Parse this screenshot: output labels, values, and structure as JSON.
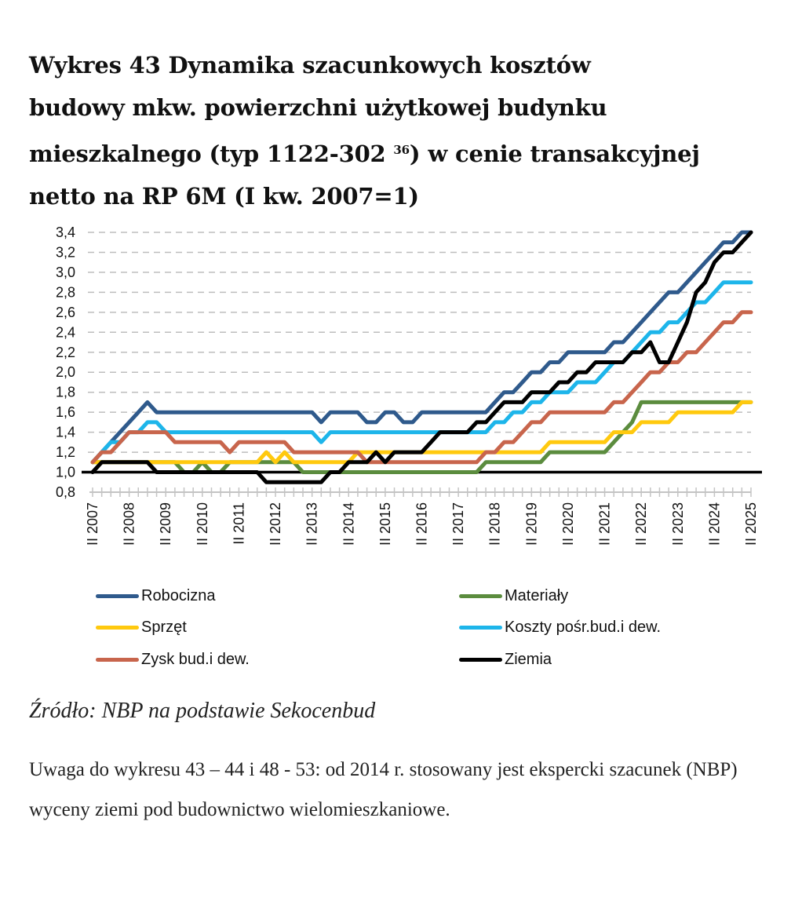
{
  "title": {
    "line1": "Wykres 43 Dynamika szacunkowych kosztów",
    "line2": "budowy mkw. powierzchni użytkowej budynku",
    "line3a": "mieszkalnego (typ 1122-302 ",
    "footnote": "36",
    "line3b": ") w cenie transakcyjnej",
    "line4": "netto na RP 6M (I kw. 2007=1)"
  },
  "chart_data": {
    "type": "line",
    "title": "Wykres 43 Dynamika szacunkowych kosztów budowy mkw. powierzchni użytkowej budynku mieszkalnego (typ 1122-302) w cenie transakcyjnej netto na RP 6M (I kw. 2007=1)",
    "xlabel": "",
    "ylabel": "",
    "x_start": "II 2007",
    "x_end": "II 2025",
    "frequency": "quarterly",
    "ylim": [
      0.8,
      3.4
    ],
    "yticks": [
      "0,8",
      "1,0",
      "1,2",
      "1,4",
      "1,6",
      "1,8",
      "2,0",
      "2,2",
      "2,4",
      "2,6",
      "2,8",
      "3,0",
      "3,2",
      "3,4"
    ],
    "ytick_values": [
      0.8,
      1.0,
      1.2,
      1.4,
      1.6,
      1.8,
      2.0,
      2.2,
      2.4,
      2.6,
      2.8,
      3.0,
      3.2,
      3.4
    ],
    "xtick_labels": [
      "II 2007",
      "II 2008",
      "II 2009",
      "II 2010",
      "II 2011",
      "II 2012",
      "II 2013",
      "II 2014",
      "II 2015",
      "II 2016",
      "II 2017",
      "II 2018",
      "II 2019",
      "II 2020",
      "II 2021",
      "II 2022",
      "II 2023",
      "II 2024",
      "II 2025"
    ],
    "reference_line": 1.0,
    "grid": true,
    "legend_position": "bottom",
    "series": [
      {
        "name": "Robocizna",
        "color": "#2F5A8C",
        "values": [
          1.1,
          1.2,
          1.3,
          1.4,
          1.5,
          1.6,
          1.7,
          1.6,
          1.6,
          1.6,
          1.6,
          1.6,
          1.6,
          1.6,
          1.6,
          1.6,
          1.6,
          1.6,
          1.6,
          1.6,
          1.6,
          1.6,
          1.6,
          1.6,
          1.6,
          1.5,
          1.6,
          1.6,
          1.6,
          1.6,
          1.5,
          1.5,
          1.6,
          1.6,
          1.5,
          1.5,
          1.6,
          1.6,
          1.6,
          1.6,
          1.6,
          1.6,
          1.6,
          1.6,
          1.7,
          1.8,
          1.8,
          1.9,
          2.0,
          2.0,
          2.1,
          2.1,
          2.2,
          2.2,
          2.2,
          2.2,
          2.2,
          2.3,
          2.3,
          2.4,
          2.5,
          2.6,
          2.7,
          2.8,
          2.8,
          2.9,
          3.0,
          3.1,
          3.2,
          3.3,
          3.3,
          3.4,
          3.4
        ]
      },
      {
        "name": "Koszty pośr.bud.i dew.",
        "color": "#1DB5EA",
        "values": [
          1.1,
          1.2,
          1.3,
          1.3,
          1.4,
          1.4,
          1.5,
          1.5,
          1.4,
          1.4,
          1.4,
          1.4,
          1.4,
          1.4,
          1.4,
          1.4,
          1.4,
          1.4,
          1.4,
          1.4,
          1.4,
          1.4,
          1.4,
          1.4,
          1.4,
          1.3,
          1.4,
          1.4,
          1.4,
          1.4,
          1.4,
          1.4,
          1.4,
          1.4,
          1.4,
          1.4,
          1.4,
          1.4,
          1.4,
          1.4,
          1.4,
          1.4,
          1.4,
          1.4,
          1.5,
          1.5,
          1.6,
          1.6,
          1.7,
          1.7,
          1.8,
          1.8,
          1.8,
          1.9,
          1.9,
          1.9,
          2.0,
          2.1,
          2.1,
          2.2,
          2.3,
          2.4,
          2.4,
          2.5,
          2.5,
          2.6,
          2.7,
          2.7,
          2.8,
          2.9,
          2.9,
          2.9,
          2.9
        ]
      },
      {
        "name": "Materiały",
        "color": "#5B8C3E",
        "values": [
          1.1,
          1.1,
          1.1,
          1.1,
          1.1,
          1.1,
          1.1,
          1.1,
          1.1,
          1.1,
          1.0,
          1.0,
          1.1,
          1.0,
          1.0,
          1.1,
          1.1,
          1.1,
          1.1,
          1.1,
          1.1,
          1.1,
          1.1,
          1.0,
          1.0,
          1.0,
          1.0,
          1.0,
          1.0,
          1.0,
          1.0,
          1.0,
          1.0,
          1.0,
          1.0,
          1.0,
          1.0,
          1.0,
          1.0,
          1.0,
          1.0,
          1.0,
          1.0,
          1.1,
          1.1,
          1.1,
          1.1,
          1.1,
          1.1,
          1.1,
          1.2,
          1.2,
          1.2,
          1.2,
          1.2,
          1.2,
          1.2,
          1.3,
          1.4,
          1.5,
          1.7,
          1.7,
          1.7,
          1.7,
          1.7,
          1.7,
          1.7,
          1.7,
          1.7,
          1.7,
          1.7,
          1.7,
          1.7
        ]
      },
      {
        "name": "Sprzęt",
        "color": "#FFC90E",
        "values": [
          1.1,
          1.1,
          1.1,
          1.1,
          1.1,
          1.1,
          1.1,
          1.1,
          1.1,
          1.1,
          1.1,
          1.1,
          1.1,
          1.1,
          1.1,
          1.1,
          1.1,
          1.1,
          1.1,
          1.2,
          1.1,
          1.2,
          1.1,
          1.1,
          1.1,
          1.1,
          1.1,
          1.1,
          1.1,
          1.2,
          1.2,
          1.2,
          1.2,
          1.2,
          1.2,
          1.2,
          1.2,
          1.2,
          1.2,
          1.2,
          1.2,
          1.2,
          1.2,
          1.2,
          1.2,
          1.2,
          1.2,
          1.2,
          1.2,
          1.2,
          1.3,
          1.3,
          1.3,
          1.3,
          1.3,
          1.3,
          1.3,
          1.4,
          1.4,
          1.4,
          1.5,
          1.5,
          1.5,
          1.5,
          1.6,
          1.6,
          1.6,
          1.6,
          1.6,
          1.6,
          1.6,
          1.7,
          1.7
        ]
      },
      {
        "name": "Zysk bud.i dew.",
        "color": "#C8654C",
        "values": [
          1.1,
          1.2,
          1.2,
          1.3,
          1.4,
          1.4,
          1.4,
          1.4,
          1.4,
          1.3,
          1.3,
          1.3,
          1.3,
          1.3,
          1.3,
          1.2,
          1.3,
          1.3,
          1.3,
          1.3,
          1.3,
          1.3,
          1.2,
          1.2,
          1.2,
          1.2,
          1.2,
          1.2,
          1.2,
          1.2,
          1.1,
          1.1,
          1.1,
          1.1,
          1.1,
          1.1,
          1.1,
          1.1,
          1.1,
          1.1,
          1.1,
          1.1,
          1.1,
          1.2,
          1.2,
          1.3,
          1.3,
          1.4,
          1.5,
          1.5,
          1.6,
          1.6,
          1.6,
          1.6,
          1.6,
          1.6,
          1.6,
          1.7,
          1.7,
          1.8,
          1.9,
          2.0,
          2.0,
          2.1,
          2.1,
          2.2,
          2.2,
          2.3,
          2.4,
          2.5,
          2.5,
          2.6,
          2.6
        ]
      },
      {
        "name": "Ziemia",
        "color": "#000000",
        "values": [
          1.0,
          1.1,
          1.1,
          1.1,
          1.1,
          1.1,
          1.1,
          1.0,
          1.0,
          1.0,
          1.0,
          1.0,
          1.0,
          1.0,
          1.0,
          1.0,
          1.0,
          1.0,
          1.0,
          0.9,
          0.9,
          0.9,
          0.9,
          0.9,
          0.9,
          0.9,
          1.0,
          1.0,
          1.1,
          1.1,
          1.1,
          1.2,
          1.1,
          1.2,
          1.2,
          1.2,
          1.2,
          1.3,
          1.4,
          1.4,
          1.4,
          1.4,
          1.5,
          1.5,
          1.6,
          1.7,
          1.7,
          1.7,
          1.8,
          1.8,
          1.8,
          1.9,
          1.9,
          2.0,
          2.0,
          2.1,
          2.1,
          2.1,
          2.1,
          2.2,
          2.2,
          2.3,
          2.1,
          2.1,
          2.3,
          2.5,
          2.8,
          2.9,
          3.1,
          3.2,
          3.2,
          3.3,
          3.4
        ]
      }
    ]
  },
  "legend": [
    {
      "label": "Robocizna",
      "color": "#2F5A8C"
    },
    {
      "label": "Materiały",
      "color": "#5B8C3E"
    },
    {
      "label": "Sprzęt",
      "color": "#FFC90E"
    },
    {
      "label": "Koszty pośr.bud.i dew.",
      "color": "#1DB5EA"
    },
    {
      "label": "Zysk bud.i dew.",
      "color": "#C8654C"
    },
    {
      "label": "Ziemia",
      "color": "#000000"
    }
  ],
  "source": "Źródło: NBP na podstawie Sekocenbud",
  "note": "Uwaga do wykresu 43 – 44 i 48 - 53: od 2014 r. stosowany jest ekspercki szacunek (NBP) wyceny ziemi pod budownictwo wielomieszkaniowe."
}
